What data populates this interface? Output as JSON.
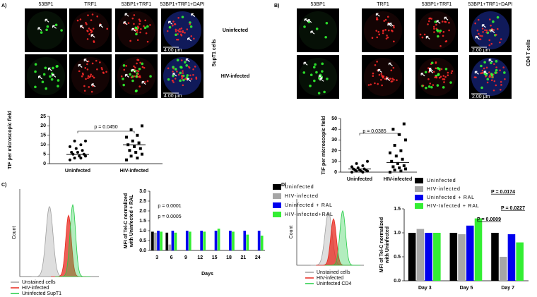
{
  "panel_labels": [
    "A)",
    "B)",
    "C)",
    "D)"
  ],
  "microscopy": [
    {
      "columns": [
        "53BP1",
        "TRF1",
        "53BP1+TRF1",
        "53BP1+TRF1+DAPI"
      ],
      "rows": [
        "Uninfected",
        "HIV-infected"
      ],
      "cell_line": "SupT1 cells",
      "scale": "4.00 μm"
    },
    {
      "columns": [
        "53BP1",
        "TRF1",
        "53BP1+TRF1",
        "53BP1+TRF1+DAPI"
      ],
      "cell_line": "CD4 T cells",
      "scale": "2.00 μm"
    }
  ],
  "flow": [
    {
      "ylabel": "Count",
      "legend": [
        {
          "name": "Unstained cells",
          "color": "#a0a0a0"
        },
        {
          "name": "HIV-infected",
          "color": "#e8281e"
        },
        {
          "name": "Uninfected SupT1",
          "color": "#22cc44"
        }
      ]
    },
    {
      "ylabel": "Count",
      "legend": [
        {
          "name": "Unstained cells",
          "color": "#a0a0a0"
        },
        {
          "name": "HIV-infected",
          "color": "#e8281e"
        },
        {
          "name": "Uninfected CD4",
          "color": "#22cc44"
        }
      ]
    }
  ],
  "chart_data": [
    {
      "type": "scatter",
      "ylabel": [
        "TIF per microscopic field"
      ],
      "categories": [
        "Uninfected",
        "HIV-infected"
      ],
      "values": [
        [
          2,
          3,
          3,
          4,
          4,
          5,
          5,
          6,
          6,
          7,
          8,
          9,
          10,
          12,
          12
        ],
        [
          2,
          3,
          4,
          5,
          6,
          7,
          8,
          9,
          10,
          11,
          12,
          14,
          15,
          18,
          20
        ]
      ],
      "means": [
        5,
        10
      ],
      "color": "#000000",
      "ylim": [
        0,
        25
      ],
      "yticks": [
        0,
        5,
        10,
        15,
        20,
        25
      ],
      "annotations": [
        "p = 0.0450"
      ]
    },
    {
      "type": "scatter",
      "ylabel": [
        "TIF per microscopic field"
      ],
      "categories": [
        "Uninfected",
        "HIV-infected"
      ],
      "values": [
        [
          0,
          0,
          1,
          1,
          1,
          2,
          2,
          2,
          3,
          3,
          4,
          5,
          6,
          8,
          10
        ],
        [
          0,
          1,
          2,
          3,
          4,
          5,
          6,
          8,
          10,
          12,
          15,
          18,
          20,
          25,
          30,
          35,
          40,
          45
        ]
      ],
      "means": [
        3,
        9
      ],
      "color": "#000000",
      "ylim": [
        0,
        50
      ],
      "yticks": [
        0,
        10,
        20,
        30,
        40,
        50
      ],
      "annotations": [
        "p = 0.0385"
      ]
    },
    {
      "type": "bar",
      "ylabel": [
        "MFI of Tel-C normalized",
        "with Uninfected + RAL"
      ],
      "xlabel": "Days",
      "categories": [
        "3",
        "6",
        "9",
        "12",
        "15",
        "18",
        "21",
        "24"
      ],
      "series": [
        {
          "name": "Uninfected",
          "color": "#000000",
          "values": [
            0.95,
            0.9,
            null,
            null,
            null,
            null,
            null,
            null
          ]
        },
        {
          "name": "HIV-infected",
          "color": "#a6a6a6",
          "values": [
            0.9,
            0.3,
            null,
            null,
            null,
            null,
            null,
            null
          ]
        },
        {
          "name": "Uninfected + RAL",
          "color": "#0000ee",
          "values": [
            1.0,
            1.0,
            1.0,
            1.0,
            1.0,
            1.0,
            1.0,
            1.0
          ]
        },
        {
          "name": "HIV-infected+RAL",
          "color": "#33ee33",
          "values": [
            0.95,
            0.9,
            0.95,
            0.95,
            1.1,
            0.95,
            0.8,
            0.75
          ]
        }
      ],
      "ylim": [
        0,
        3
      ],
      "yticks": [
        {
          "value": 0,
          "label": "0.0"
        },
        0.5,
        {
          "value": 1,
          "label": "1.0"
        },
        1.5,
        {
          "value": 2,
          "label": "2.0"
        },
        2.5,
        {
          "value": 3,
          "label": "3.0"
        }
      ],
      "annotations": [
        "p = 0.0001",
        "p = 0.0005"
      ]
    },
    {
      "type": "bar",
      "ylabel": [
        "MFI of Tel-C normalized",
        "with Uninfected"
      ],
      "categories": [
        "Day 3",
        "Day 5",
        "Day 7"
      ],
      "series": [
        {
          "name": "Uninfected",
          "color": "#000000",
          "values": [
            1.0,
            1.0,
            1.0
          ]
        },
        {
          "name": "HIV-infected",
          "color": "#a6a6a6",
          "values": [
            1.08,
            0.97,
            0.5
          ]
        },
        {
          "name": "Uninfected + RAL",
          "color": "#0000ee",
          "values": [
            1.0,
            1.15,
            0.97
          ]
        },
        {
          "name": "HIV-Infected + RAL",
          "color": "#33ee33",
          "values": [
            1.0,
            1.3,
            0.8
          ]
        }
      ],
      "ylim": [
        0,
        1.5
      ],
      "yticks": [
        {
          "value": 0,
          "label": "0.0"
        },
        0.5,
        {
          "value": 1,
          "label": "1.0"
        },
        1.5
      ],
      "annotations": [
        "P = 0.0174",
        "P = 0.0227",
        "P = 0.0009"
      ]
    }
  ]
}
